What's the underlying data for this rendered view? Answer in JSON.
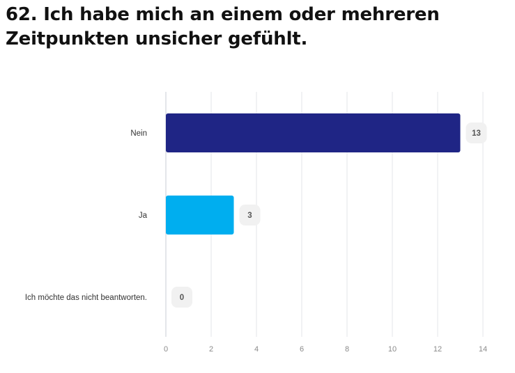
{
  "chart_data": {
    "type": "bar",
    "orientation": "horizontal",
    "title": "62. Ich habe mich an einem oder mehreren Zeitpunkten unsicher gefühlt.",
    "categories": [
      "Nein",
      "Ja",
      "Ich möchte das nicht beantworten."
    ],
    "values": [
      13,
      3,
      0
    ],
    "colors": [
      "#1f2585",
      "#00aeef",
      "#00aeef"
    ],
    "xlim": [
      0,
      14
    ],
    "xticks": [
      0,
      2,
      4,
      6,
      8,
      10,
      12,
      14
    ],
    "grid": true,
    "legend": "none",
    "data_labels": true,
    "label_badge_color": "#f1f1f1"
  }
}
